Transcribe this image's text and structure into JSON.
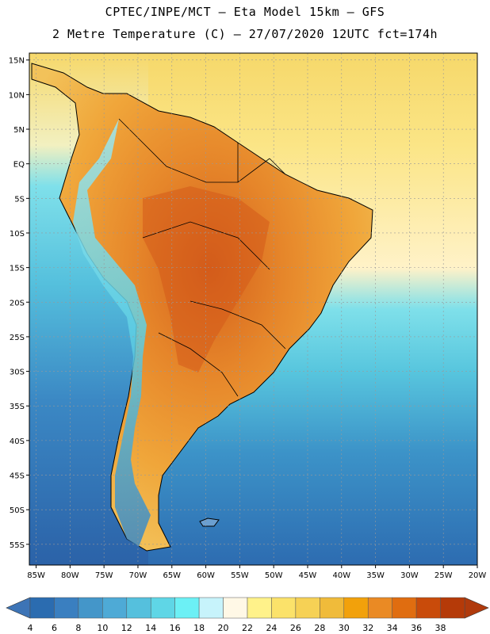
{
  "header": {
    "line1": "CPTEC/INPE/MCT –  Eta Model 15km – GFS",
    "line2": "2 Metre Temperature (C) – 27/07/2020 12UTC fct=174h"
  },
  "map": {
    "lat_labels": [
      "15N",
      "10N",
      "5N",
      "EQ",
      "5S",
      "10S",
      "15S",
      "20S",
      "25S",
      "30S",
      "35S",
      "40S",
      "45S",
      "50S",
      "55S"
    ],
    "lat_values": [
      15,
      10,
      5,
      0,
      -5,
      -10,
      -15,
      -20,
      -25,
      -30,
      -35,
      -40,
      -45,
      -50,
      -55
    ],
    "lon_labels": [
      "85W",
      "80W",
      "75W",
      "70W",
      "65W",
      "60W",
      "55W",
      "50W",
      "45W",
      "40W",
      "35W",
      "30W",
      "25W",
      "20W"
    ],
    "lon_values": [
      -85,
      -80,
      -75,
      -70,
      -65,
      -60,
      -55,
      -50,
      -45,
      -40,
      -35,
      -30,
      -25,
      -20
    ],
    "extent": {
      "lon_min": -86,
      "lon_max": -20,
      "lat_min": -58,
      "lat_max": 16
    },
    "ocean_color": "#f4d66e",
    "land_color": "#e89a2e"
  },
  "colorbar": {
    "labels": [
      "4",
      "6",
      "8",
      "10",
      "12",
      "14",
      "16",
      "18",
      "20",
      "22",
      "24",
      "26",
      "28",
      "30",
      "32",
      "34",
      "36",
      "38"
    ],
    "colors": [
      "#2b6cb0",
      "#3a7fc0",
      "#4496c9",
      "#4eaad6",
      "#55c0dd",
      "#5fd6e6",
      "#6cf0f5",
      "#c7f3fb",
      "#fff8e6",
      "#fff28a",
      "#fbe26a",
      "#f6d155",
      "#f0bb3a",
      "#f2a10b",
      "#ea8a24",
      "#e06d10",
      "#c94b0a",
      "#b53a08"
    ],
    "low_color": "#3d74b6",
    "high_color": "#b03a0c"
  }
}
